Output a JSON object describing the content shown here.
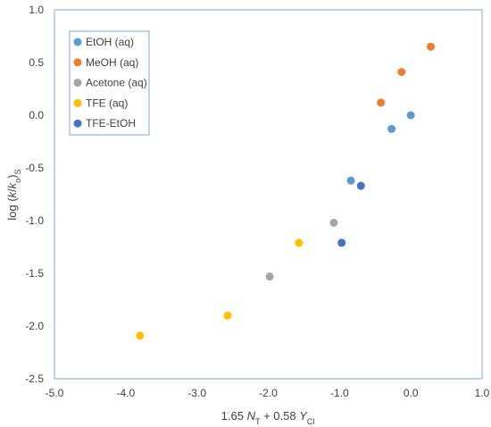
{
  "chart_data": {
    "type": "scatter",
    "xlabel": {
      "parts": [
        {
          "t": "1.65 ",
          "style": "normal"
        },
        {
          "t": "N",
          "style": "italic"
        },
        {
          "t": "T",
          "style": "sub"
        },
        {
          "t": " + 0.58 ",
          "style": "normal"
        },
        {
          "t": "Y",
          "style": "italic"
        },
        {
          "t": "Cl",
          "style": "sub"
        }
      ]
    },
    "ylabel": {
      "parts": [
        {
          "t": "log (",
          "style": "normal"
        },
        {
          "t": "k",
          "style": "italic"
        },
        {
          "t": "/",
          "style": "normal"
        },
        {
          "t": "k",
          "style": "italic"
        },
        {
          "t": "o",
          "style": "sub"
        },
        {
          "t": ")",
          "style": "normal"
        },
        {
          "t": "S",
          "style": "sub"
        }
      ]
    },
    "xlim": [
      -5.0,
      1.0
    ],
    "ylim": [
      -2.5,
      1.0
    ],
    "xticks": [
      "-5.0",
      "-4.0",
      "-3.0",
      "-2.0",
      "-1.0",
      "0.0",
      "1.0"
    ],
    "yticks": [
      "1.0",
      "0.5",
      "0.0",
      "-0.5",
      "-1.0",
      "-1.5",
      "-2.0",
      "-2.5"
    ],
    "grid": false,
    "legend_position": "top-left",
    "series": [
      {
        "name": "EtOH (aq)",
        "color": "#5B9BD5",
        "points": [
          [
            0.0,
            0.0
          ],
          [
            -0.27,
            -0.13
          ],
          [
            -0.84,
            -0.62
          ]
        ]
      },
      {
        "name": "MeOH (aq)",
        "color": "#ED7D31",
        "points": [
          [
            0.28,
            0.65
          ],
          [
            -0.13,
            0.41
          ],
          [
            -0.42,
            0.12
          ]
        ]
      },
      {
        "name": "Acetone (aq)",
        "color": "#A5A5A5",
        "points": [
          [
            -1.08,
            -1.02
          ],
          [
            -1.98,
            -1.53
          ]
        ]
      },
      {
        "name": "TFE (aq)",
        "color": "#FFC000",
        "points": [
          [
            -1.57,
            -1.21
          ],
          [
            -2.57,
            -1.9
          ],
          [
            -3.8,
            -2.09
          ]
        ]
      },
      {
        "name": "TFE-EtOH",
        "color": "#4472C4",
        "points": [
          [
            -0.7,
            -0.67
          ],
          [
            -0.97,
            -1.21
          ]
        ]
      }
    ]
  }
}
